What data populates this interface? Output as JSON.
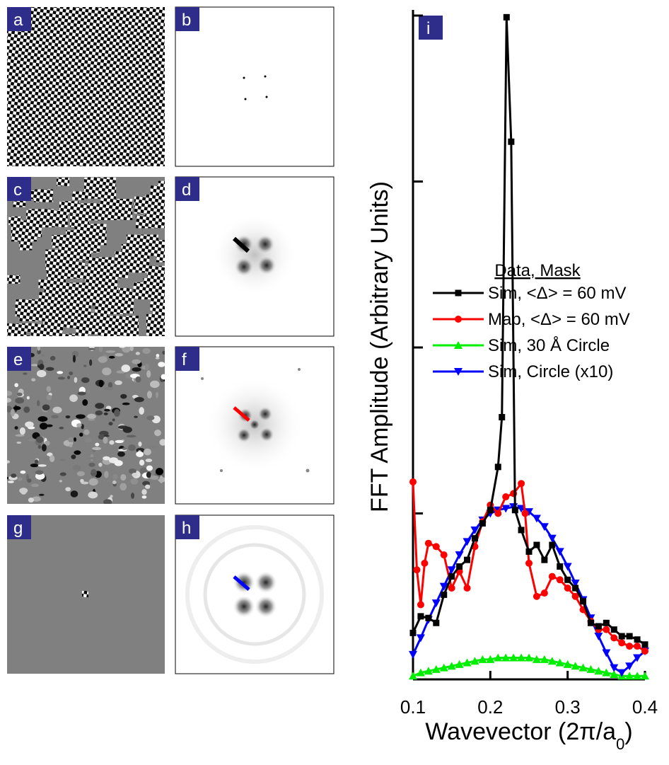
{
  "panels": [
    {
      "label": "a"
    },
    {
      "label": "b"
    },
    {
      "label": "c"
    },
    {
      "label": "d"
    },
    {
      "label": "e"
    },
    {
      "label": "f"
    },
    {
      "label": "g"
    },
    {
      "label": "h"
    }
  ],
  "chart_data": {
    "type": "line",
    "panel_label": "i",
    "y_label": "FFT Amplitude (Arbitrary Units)",
    "x_label": [
      "Wavevector (2π/a",
      "0",
      ")"
    ],
    "legend_title": "Data, Mask",
    "xlim": [
      0.1,
      0.4
    ],
    "xticks": [
      0.1,
      0.2,
      0.3,
      0.4
    ],
    "ylim": [
      0,
      4
    ],
    "yticks": [
      0,
      1,
      2,
      3,
      4
    ],
    "series": [
      {
        "name": "Sim, <Δ> = 60 mV",
        "color": "#000000",
        "marker": "square",
        "x": [
          0.1,
          0.11,
          0.12,
          0.13,
          0.14,
          0.15,
          0.16,
          0.17,
          0.18,
          0.19,
          0.2,
          0.21,
          0.215,
          0.221,
          0.227,
          0.232,
          0.24,
          0.25,
          0.26,
          0.27,
          0.28,
          0.29,
          0.3,
          0.31,
          0.32,
          0.33,
          0.34,
          0.35,
          0.36,
          0.37,
          0.38,
          0.39,
          0.4
        ],
        "values": [
          0.28,
          0.38,
          0.37,
          0.34,
          0.51,
          0.62,
          0.68,
          0.72,
          0.85,
          0.94,
          1.02,
          1.28,
          1.58,
          3.99,
          3.24,
          1.02,
          0.9,
          0.77,
          0.81,
          0.72,
          0.81,
          0.68,
          0.6,
          0.55,
          0.47,
          0.34,
          0.32,
          0.34,
          0.3,
          0.26,
          0.26,
          0.24,
          0.21
        ]
      },
      {
        "name": "Map, <Δ> = 60 mV",
        "color": "#ff0000",
        "marker": "circle",
        "x": [
          0.1,
          0.105,
          0.11,
          0.115,
          0.12,
          0.13,
          0.14,
          0.15,
          0.16,
          0.17,
          0.18,
          0.19,
          0.2,
          0.21,
          0.22,
          0.23,
          0.24,
          0.245,
          0.25,
          0.26,
          0.27,
          0.28,
          0.29,
          0.3,
          0.31,
          0.32,
          0.33,
          0.34,
          0.35,
          0.36,
          0.37,
          0.38,
          0.39,
          0.4
        ],
        "values": [
          1.19,
          0.66,
          0.45,
          0.7,
          0.82,
          0.8,
          0.75,
          0.55,
          0.65,
          0.55,
          0.8,
          0.95,
          1.05,
          1.0,
          1.1,
          1.12,
          1.18,
          1.0,
          0.7,
          0.5,
          0.52,
          0.62,
          0.6,
          0.55,
          0.5,
          0.42,
          0.35,
          0.3,
          0.3,
          0.25,
          0.22,
          0.2,
          0.2,
          0.17
        ]
      },
      {
        "name": "Sim, 30 Å Circle",
        "color": "#00ee00",
        "marker": "triangle-up",
        "x": [
          0.1,
          0.11,
          0.12,
          0.13,
          0.14,
          0.15,
          0.16,
          0.17,
          0.18,
          0.19,
          0.2,
          0.21,
          0.22,
          0.23,
          0.24,
          0.25,
          0.26,
          0.27,
          0.28,
          0.29,
          0.3,
          0.31,
          0.32,
          0.33,
          0.34,
          0.35,
          0.36,
          0.37,
          0.38,
          0.39,
          0.4
        ],
        "values": [
          0.02,
          0.04,
          0.05,
          0.06,
          0.07,
          0.08,
          0.09,
          0.1,
          0.11,
          0.12,
          0.12,
          0.13,
          0.13,
          0.13,
          0.13,
          0.13,
          0.12,
          0.12,
          0.11,
          0.1,
          0.09,
          0.08,
          0.07,
          0.06,
          0.05,
          0.04,
          0.03,
          0.02,
          0.02,
          0.02,
          0.02
        ]
      },
      {
        "name": "Sim, Circle (x10)",
        "color": "#0000ff",
        "marker": "triangle-down",
        "x": [
          0.1,
          0.11,
          0.12,
          0.13,
          0.14,
          0.15,
          0.16,
          0.17,
          0.18,
          0.19,
          0.2,
          0.21,
          0.22,
          0.23,
          0.24,
          0.25,
          0.26,
          0.27,
          0.28,
          0.29,
          0.3,
          0.31,
          0.32,
          0.33,
          0.34,
          0.35,
          0.36,
          0.37,
          0.38,
          0.39,
          0.4
        ],
        "values": [
          0.15,
          0.25,
          0.36,
          0.46,
          0.56,
          0.66,
          0.75,
          0.83,
          0.9,
          0.96,
          1.0,
          1.02,
          1.03,
          1.04,
          1.03,
          1.01,
          0.97,
          0.92,
          0.85,
          0.77,
          0.68,
          0.58,
          0.48,
          0.37,
          0.26,
          0.16,
          0.07,
          0.04,
          0.08,
          0.13,
          0.17
        ]
      }
    ]
  }
}
